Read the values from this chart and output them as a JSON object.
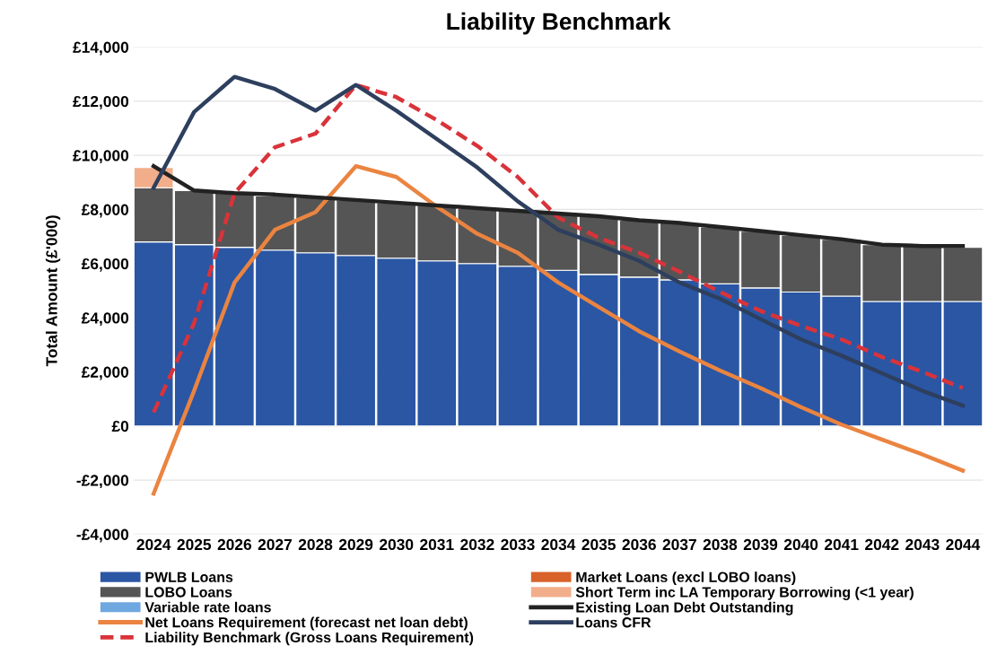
{
  "chart_data": {
    "type": "bar",
    "stacked": true,
    "title": "Liability Benchmark",
    "ylabel": "Total Amount (£'000)",
    "categories": [
      "2024",
      "2025",
      "2026",
      "2027",
      "2028",
      "2029",
      "2030",
      "2031",
      "2032",
      "2033",
      "2034",
      "2035",
      "2036",
      "2037",
      "2038",
      "2039",
      "2040",
      "2041",
      "2042",
      "2043",
      "2044"
    ],
    "ylim": [
      -4000,
      14000
    ],
    "yticks": [
      {
        "value": -4000,
        "label": "-£4,000"
      },
      {
        "value": -2000,
        "label": "-£2,000"
      },
      {
        "value": 0,
        "label": "£0"
      },
      {
        "value": 2000,
        "label": "£2,000"
      },
      {
        "value": 4000,
        "label": "£4,000"
      },
      {
        "value": 6000,
        "label": "£6,000"
      },
      {
        "value": 8000,
        "label": "£8,000"
      },
      {
        "value": 10000,
        "label": "£10,000"
      },
      {
        "value": 12000,
        "label": "£12,000"
      },
      {
        "value": 14000,
        "label": "£14,000"
      }
    ],
    "grid": "y",
    "legend": "bottom",
    "series": [
      {
        "name": "PWLB Loans",
        "color": "#2a56a4",
        "values": [
          6800,
          6700,
          6600,
          6500,
          6400,
          6300,
          6200,
          6100,
          6000,
          5900,
          5750,
          5600,
          5500,
          5400,
          5250,
          5100,
          4950,
          4800,
          4600,
          4600,
          4600
        ]
      },
      {
        "name": "LOBO Loans",
        "color": "#555555",
        "values": [
          2000,
          2000,
          2000,
          2000,
          2050,
          2050,
          2050,
          2050,
          2050,
          2050,
          2100,
          2150,
          2100,
          2100,
          2100,
          2100,
          2100,
          2100,
          2100,
          2050,
          2000
        ]
      },
      {
        "name": "Variable rate loans",
        "color": "#6fa8e0",
        "values": [
          null,
          null,
          null,
          null,
          null,
          null,
          null,
          null,
          null,
          null,
          null,
          null,
          null,
          null,
          null,
          null,
          null,
          null,
          null,
          null,
          null
        ]
      },
      {
        "name": "Net Loans Requirement (forecast net loan debt)",
        "type": "line",
        "color": "#ea8440",
        "line_style": "solid",
        "values": [
          -2500,
          1300,
          5300,
          7250,
          7900,
          9600,
          9200,
          8100,
          7100,
          6400,
          5300,
          4400,
          3500,
          2750,
          2050,
          1400,
          700,
          50,
          -500,
          -1050,
          -1650
        ]
      },
      {
        "name": "Liability Benchmark (Gross Loans Requirement)",
        "type": "line",
        "color": "#d9333a",
        "line_style": "dashed",
        "values": [
          500,
          3800,
          8600,
          10300,
          10800,
          12600,
          12150,
          11300,
          10350,
          9200,
          7700,
          6950,
          6400,
          5700,
          4950,
          4250,
          3700,
          3200,
          2550,
          2000,
          1400
        ]
      },
      {
        "name": "Market Loans (excl LOBO loans)",
        "color": "#d9622b",
        "values": [
          null,
          null,
          null,
          null,
          null,
          null,
          null,
          null,
          null,
          null,
          null,
          null,
          null,
          null,
          null,
          null,
          null,
          null,
          null,
          null,
          null
        ]
      },
      {
        "name": "Short Term inc LA Temporary Borrowing (<1 year)",
        "color": "#f2ae8a",
        "values": [
          750,
          null,
          null,
          null,
          null,
          null,
          null,
          null,
          null,
          null,
          null,
          null,
          null,
          null,
          null,
          null,
          null,
          null,
          null,
          null,
          null
        ]
      },
      {
        "name": "Existing Loan Debt Outstanding",
        "type": "line",
        "color": "#222222",
        "line_style": "solid",
        "values": [
          9600,
          8700,
          8600,
          8550,
          8450,
          8350,
          8250,
          8150,
          8050,
          7950,
          7850,
          7750,
          7600,
          7500,
          7350,
          7200,
          7050,
          6900,
          6700,
          6650,
          6650
        ]
      },
      {
        "name": "Loans CFR",
        "type": "line",
        "color": "#2e3f5e",
        "line_style": "solid",
        "values": [
          8800,
          11600,
          12900,
          12450,
          11650,
          12600,
          11650,
          10600,
          9550,
          8300,
          7250,
          6700,
          6100,
          5300,
          4700,
          3950,
          3200,
          2600,
          1950,
          1300,
          750
        ]
      }
    ]
  }
}
